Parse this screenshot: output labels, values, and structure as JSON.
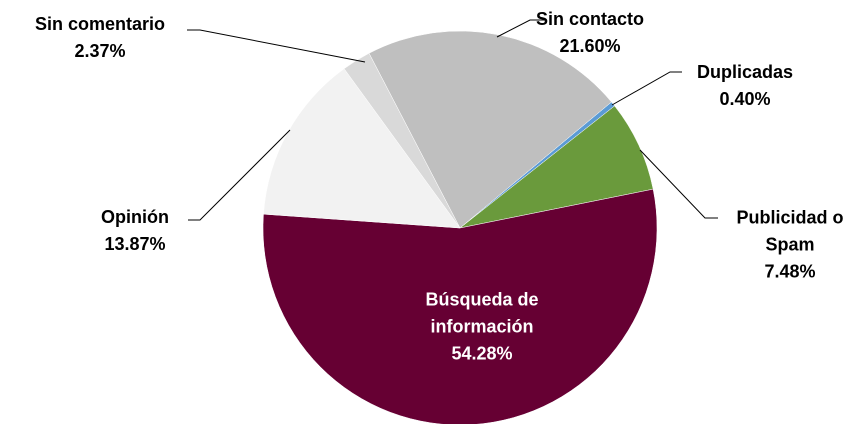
{
  "chart_data": {
    "type": "pie",
    "categories": [
      "Sin contacto",
      "Duplicadas",
      "Publicidad o Spam",
      "Búsqueda de información",
      "Opinión",
      "Sin comentario"
    ],
    "values": [
      21.6,
      0.4,
      7.48,
      54.28,
      13.87,
      2.37
    ],
    "value_labels": [
      "21.60%",
      "0.40%",
      "7.48%",
      "54.28%",
      "13.87%",
      "2.37%"
    ],
    "colors": [
      "#bfbfbf",
      "#5b9bd5",
      "#6a9a3c",
      "#660033",
      "#f2f2f2",
      "#d9d9d9"
    ]
  }
}
